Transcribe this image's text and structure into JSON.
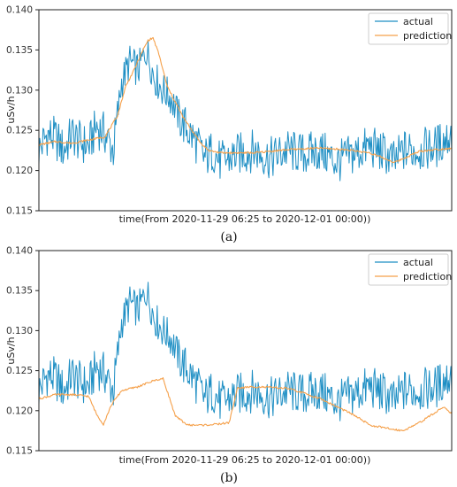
{
  "colors": {
    "actual": "#1f8fc4",
    "prediction": "#f5a04a",
    "axis": "#222222"
  },
  "chart_data": [
    {
      "type": "line",
      "caption": "(a)",
      "xlabel": "time(From 2020-11-29 06:25 to 2020-12-01 00:00))",
      "ylabel": "uSv/h",
      "ylim": [
        0.115,
        0.14
      ],
      "yticks": [
        "0.115",
        "0.120",
        "0.125",
        "0.130",
        "0.135",
        "0.140"
      ],
      "grid": false,
      "legend_position": "top-right",
      "x": "sample index 0-499",
      "series": [
        {
          "name": "actual",
          "color": "#1f8fc4",
          "points": [
            [
              0,
              0.1225
            ],
            [
              10,
              0.1245
            ],
            [
              20,
              0.124
            ],
            [
              30,
              0.1225
            ],
            [
              40,
              0.1245
            ],
            [
              50,
              0.1235
            ],
            [
              60,
              0.123
            ],
            [
              70,
              0.1255
            ],
            [
              80,
              0.1245
            ],
            [
              90,
              0.1225
            ],
            [
              100,
              0.131
            ],
            [
              110,
              0.1335
            ],
            [
              120,
              0.1325
            ],
            [
              130,
              0.135
            ],
            [
              140,
              0.1315
            ],
            [
              150,
              0.13
            ],
            [
              160,
              0.129
            ],
            [
              170,
              0.1265
            ],
            [
              180,
              0.125
            ],
            [
              190,
              0.1235
            ],
            [
              200,
              0.1215
            ],
            [
              210,
              0.1225
            ],
            [
              220,
              0.121
            ],
            [
              240,
              0.122
            ],
            [
              260,
              0.1225
            ],
            [
              280,
              0.1215
            ],
            [
              300,
              0.1225
            ],
            [
              320,
              0.122
            ],
            [
              340,
              0.1225
            ],
            [
              360,
              0.121
            ],
            [
              380,
              0.122
            ],
            [
              400,
              0.123
            ],
            [
              420,
              0.122
            ],
            [
              430,
              0.121
            ],
            [
              440,
              0.1225
            ],
            [
              460,
              0.1225
            ],
            [
              480,
              0.123
            ],
            [
              499,
              0.1245
            ]
          ]
        },
        {
          "name": "prediction",
          "color": "#f5a04a",
          "points": [
            [
              0,
              0.1232
            ],
            [
              20,
              0.1236
            ],
            [
              40,
              0.1234
            ],
            [
              60,
              0.1238
            ],
            [
              80,
              0.1242
            ],
            [
              95,
              0.1268
            ],
            [
              105,
              0.1305
            ],
            [
              115,
              0.1325
            ],
            [
              125,
              0.1348
            ],
            [
              132,
              0.1362
            ],
            [
              138,
              0.1365
            ],
            [
              145,
              0.1345
            ],
            [
              155,
              0.1305
            ],
            [
              165,
              0.1285
            ],
            [
              175,
              0.1265
            ],
            [
              185,
              0.125
            ],
            [
              195,
              0.1235
            ],
            [
              205,
              0.1225
            ],
            [
              220,
              0.1222
            ],
            [
              260,
              0.1222
            ],
            [
              300,
              0.1226
            ],
            [
              340,
              0.1228
            ],
            [
              370,
              0.1226
            ],
            [
              400,
              0.1222
            ],
            [
              430,
              0.121
            ],
            [
              460,
              0.1224
            ],
            [
              499,
              0.1228
            ]
          ]
        }
      ]
    },
    {
      "type": "line",
      "caption": "(b)",
      "xlabel": "time(From 2020-11-29 06:25 to 2020-12-01 00:00))",
      "ylabel": "uSv/h",
      "ylim": [
        0.115,
        0.14
      ],
      "yticks": [
        "0.115",
        "0.120",
        "0.125",
        "0.130",
        "0.135",
        "0.140"
      ],
      "grid": false,
      "legend_position": "top-right",
      "x": "sample index 0-499",
      "series": [
        {
          "name": "actual",
          "color": "#1f8fc4",
          "points": [
            [
              0,
              0.1225
            ],
            [
              10,
              0.1245
            ],
            [
              20,
              0.124
            ],
            [
              30,
              0.1225
            ],
            [
              40,
              0.1245
            ],
            [
              50,
              0.1235
            ],
            [
              60,
              0.123
            ],
            [
              70,
              0.1255
            ],
            [
              80,
              0.1245
            ],
            [
              90,
              0.1225
            ],
            [
              100,
              0.131
            ],
            [
              110,
              0.1335
            ],
            [
              120,
              0.1325
            ],
            [
              130,
              0.135
            ],
            [
              140,
              0.1315
            ],
            [
              150,
              0.13
            ],
            [
              160,
              0.129
            ],
            [
              170,
              0.1265
            ],
            [
              180,
              0.125
            ],
            [
              190,
              0.1235
            ],
            [
              200,
              0.1215
            ],
            [
              210,
              0.1225
            ],
            [
              220,
              0.121
            ],
            [
              240,
              0.122
            ],
            [
              260,
              0.1225
            ],
            [
              280,
              0.1215
            ],
            [
              300,
              0.1225
            ],
            [
              320,
              0.122
            ],
            [
              340,
              0.1225
            ],
            [
              360,
              0.121
            ],
            [
              380,
              0.122
            ],
            [
              400,
              0.123
            ],
            [
              420,
              0.122
            ],
            [
              430,
              0.121
            ],
            [
              440,
              0.1225
            ],
            [
              460,
              0.1225
            ],
            [
              480,
              0.123
            ],
            [
              499,
              0.1245
            ]
          ]
        },
        {
          "name": "prediction",
          "color": "#f5a04a",
          "points": [
            [
              0,
              0.1215
            ],
            [
              20,
              0.122
            ],
            [
              40,
              0.122
            ],
            [
              60,
              0.1218
            ],
            [
              70,
              0.1195
            ],
            [
              78,
              0.1183
            ],
            [
              88,
              0.1208
            ],
            [
              100,
              0.1225
            ],
            [
              120,
              0.123
            ],
            [
              140,
              0.1238
            ],
            [
              150,
              0.124
            ],
            [
              155,
              0.1225
            ],
            [
              165,
              0.1193
            ],
            [
              180,
              0.1182
            ],
            [
              200,
              0.1182
            ],
            [
              215,
              0.1183
            ],
            [
              230,
              0.1185
            ],
            [
              240,
              0.1228
            ],
            [
              260,
              0.123
            ],
            [
              300,
              0.1228
            ],
            [
              320,
              0.1222
            ],
            [
              340,
              0.1215
            ],
            [
              360,
              0.1205
            ],
            [
              380,
              0.1195
            ],
            [
              400,
              0.1182
            ],
            [
              420,
              0.1178
            ],
            [
              440,
              0.1175
            ],
            [
              460,
              0.1185
            ],
            [
              475,
              0.1195
            ],
            [
              490,
              0.1205
            ],
            [
              499,
              0.1196
            ]
          ]
        }
      ]
    }
  ]
}
